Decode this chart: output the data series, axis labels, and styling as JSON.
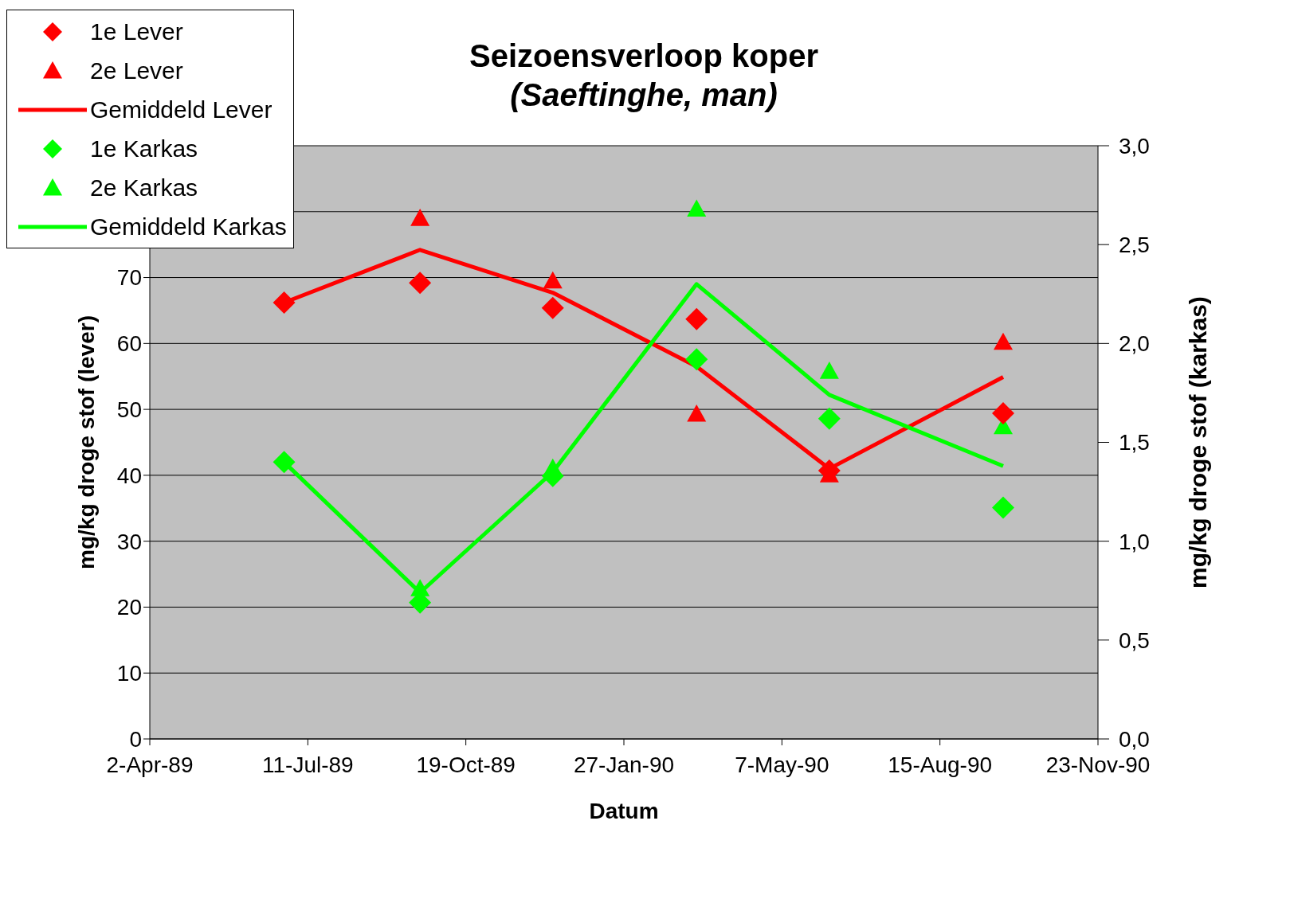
{
  "chart_data": {
    "type": "line",
    "title": "Seizoensverloop koper",
    "subtitle": "(Saeftinghe, man)",
    "xlabel": "Datum",
    "ylabel": "mg/kg droge stof (lever)",
    "y2label": "mg/kg droge stof (karkas)",
    "xlim": [
      "1989-04-02",
      "1990-11-23"
    ],
    "xticks": [
      {
        "value": "1989-04-02",
        "label": "2-Apr-89"
      },
      {
        "value": "1989-07-11",
        "label": "11-Jul-89"
      },
      {
        "value": "1989-10-19",
        "label": "19-Oct-89"
      },
      {
        "value": "1990-01-27",
        "label": "27-Jan-90"
      },
      {
        "value": "1990-05-07",
        "label": "7-May-90"
      },
      {
        "value": "1990-08-15",
        "label": "15-Aug-90"
      },
      {
        "value": "1990-11-23",
        "label": "23-Nov-90"
      }
    ],
    "ylim": [
      0,
      90
    ],
    "yticks": [
      0,
      10,
      20,
      30,
      40,
      50,
      60,
      70,
      {
        "value": 80,
        "label": null
      },
      {
        "value": 90,
        "label": null
      }
    ],
    "y2lim": [
      0,
      3
    ],
    "y2ticks": [
      {
        "value": 0,
        "label": "0,0"
      },
      {
        "value": 0.5,
        "label": "0,5"
      },
      {
        "value": 1,
        "label": "1,0"
      },
      {
        "value": 1.5,
        "label": "1,5"
      },
      {
        "value": 2,
        "label": "2,0"
      },
      {
        "value": 2.5,
        "label": "2,5"
      },
      {
        "value": 3,
        "label": "3,0"
      }
    ],
    "x": [
      "1989-06-26",
      "1989-09-20",
      "1989-12-13",
      "1990-03-14",
      "1990-06-06",
      "1990-09-24"
    ],
    "grid": "y",
    "legend": "top left",
    "series": [
      {
        "name": "1e Lever",
        "type": "scatter",
        "marker": "diamond",
        "color": "#ff0000",
        "values": [
          66.2,
          69.2,
          65.4,
          63.7,
          40.7,
          49.4
        ]
      },
      {
        "name": "2e Lever",
        "type": "scatter",
        "marker": "triangle",
        "color": "#ff0000",
        "values": [
          null,
          79,
          69.5,
          49.3,
          40.1,
          60.2
        ]
      },
      {
        "name": "Gemiddeld Lever",
        "marker": "none",
        "line_style": "solid",
        "color": "#ff0000",
        "values": [
          66.2,
          74.2,
          67.7,
          56.5,
          41,
          54.9
        ]
      },
      {
        "name": "1e Karkas",
        "type": "scatter",
        "marker": "diamond",
        "axis": "y2",
        "color": "#00ff00",
        "values": [
          1.4,
          0.69,
          1.33,
          1.92,
          1.62,
          1.17
        ]
      },
      {
        "name": "2e Karkas",
        "type": "scatter",
        "marker": "triangle",
        "axis": "y2",
        "color": "#00ff00",
        "values": [
          null,
          0.76,
          1.37,
          2.68,
          1.86,
          1.58
        ]
      },
      {
        "name": "Gemiddeld Karkas",
        "marker": "none",
        "line_style": "solid",
        "axis": "y2",
        "color": "#00ff00",
        "values": [
          1.4,
          0.74,
          1.35,
          2.3,
          1.74,
          1.38
        ]
      }
    ]
  }
}
